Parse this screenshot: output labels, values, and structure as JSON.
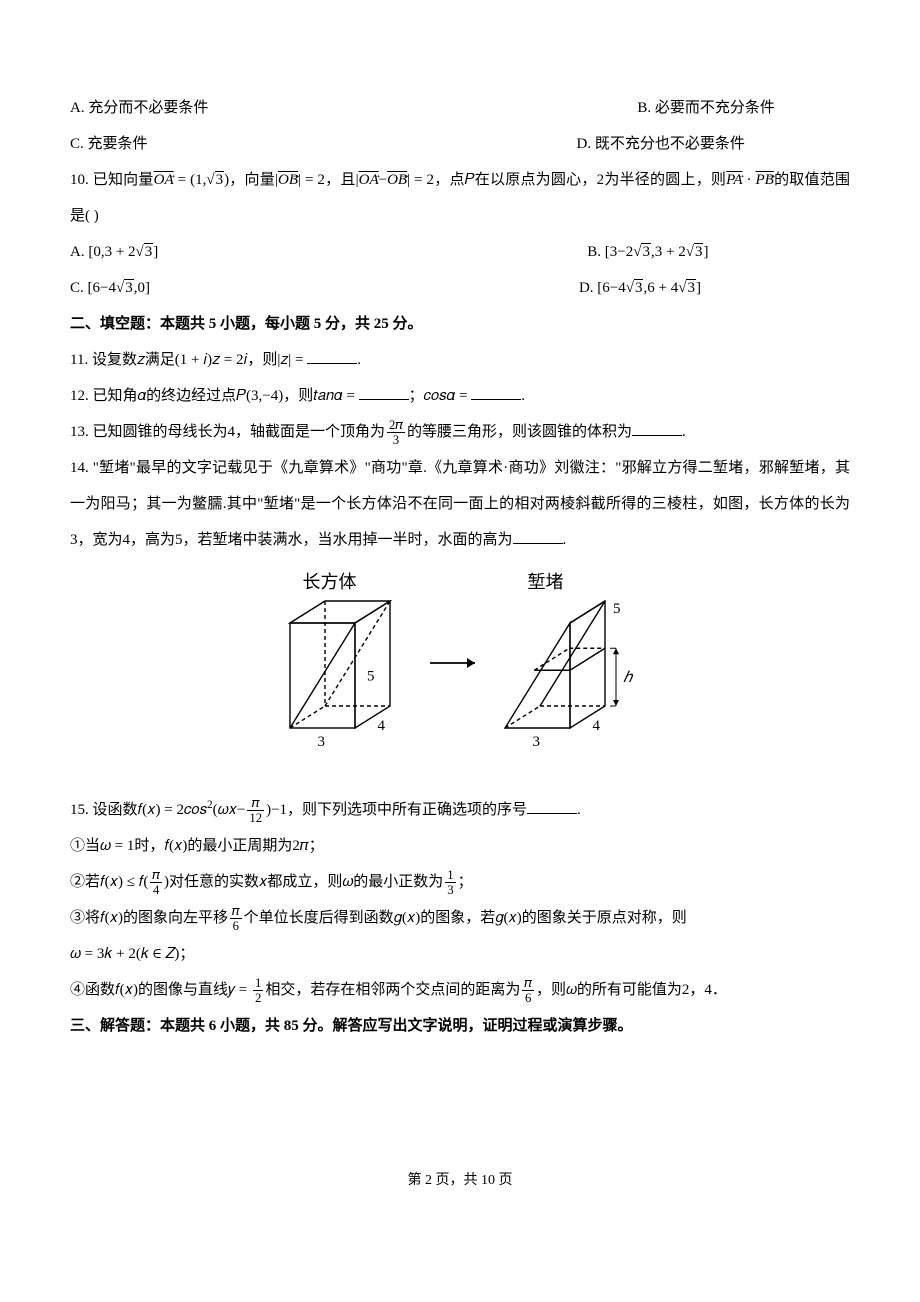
{
  "q9": {
    "optA": "A. 充分而不必要条件",
    "optB": "B. 必要而不充分条件",
    "optC": "C. 充要条件",
    "optD": "D. 既不充分也不必要条件"
  },
  "q10": {
    "stem1": "10. 已知向量",
    "vecOA": "OA",
    "eq1": " = (1,",
    "sqrt3a": "3",
    "stem2": ")，向量|",
    "vecOB": "OB",
    "stem3": "| = 2，且|",
    "vecOA2": "OA",
    "minus": "−",
    "vecOB2": "OB",
    "stem4": "| = 2，点𝑃在以原点为圆心，2为半径的圆上，则",
    "vecPA": "PA",
    "dot": " · ",
    "vecPB": "PB",
    "stem5": "的取值范围是(    )",
    "optA_pre": "A. [0,3 + 2",
    "optA_sqrt": "3",
    "optA_post": "]",
    "optB_pre": "B. [3−2",
    "optB_sqrt1": "3",
    "optB_mid": ",3 + 2",
    "optB_sqrt2": "3",
    "optB_post": "]",
    "optC_pre": "C. [6−4",
    "optC_sqrt": "3",
    "optC_post": ",0]",
    "optD_pre": "D. [6−4",
    "optD_sqrt1": "3",
    "optD_mid": ",6 + 4",
    "optD_sqrt2": "3",
    "optD_post": "]"
  },
  "sec2": "二、填空题：本题共 5 小题，每小题 5 分，共 25 分。",
  "q11": {
    "stem": "11. 设复数𝑧满足(1 + 𝑖)𝑧 = 2𝑖，则|𝑧| = ",
    "end": "."
  },
  "q12": {
    "stem": "12. 已知角𝛼的终边经过点𝑃(3,−4)，则𝑡𝑎𝑛𝛼 = ",
    "mid": "；𝑐𝑜𝑠𝛼 = ",
    "end": "."
  },
  "q13": {
    "stem1": "13. 已知圆锥的母线长为4，轴截面是一个顶角为",
    "frac_num": "2𝜋",
    "frac_den": "3",
    "stem2": "的等腰三角形，则该圆锥的体积为",
    "end": "."
  },
  "q14": {
    "stem": "14. \"堑堵\"最早的文字记载见于《九章算术》\"商功\"章.《九章算术·商功》刘徽注：\"邪解立方得二堑堵，邪解堑堵，其一为阳马；其一为鳖臑.其中\"堑堵\"是一个长方体沿不在同一面上的相对两棱斜截所得的三棱柱，如图，长方体的长为3，宽为4，高为5，若堑堵中装满水，当水用掉一半时，水面的高为",
    "end": "."
  },
  "q15": {
    "stem1": "15. 设函数𝑓(𝑥) = 2𝑐𝑜𝑠",
    "sup2": "2",
    "stem2": "(𝜔𝑥−",
    "f1n": "𝜋",
    "f1d": "12",
    "stem3": ")−1，则下列选项中所有正确选项的序号",
    "end": ".",
    "s1": "①当𝜔 = 1时，𝑓(𝑥)的最小正周期为2𝜋；",
    "s2a": "②若𝑓(𝑥) ≤ 𝑓(",
    "s2fn": "𝜋",
    "s2fd": "4",
    "s2b": ")对任意的实数𝑥都成立，则𝜔的最小正数为",
    "s2gn": "1",
    "s2gd": "3",
    "s2c": "；",
    "s3a": "③将𝑓(𝑥)的图象向左平移",
    "s3fn": "𝜋",
    "s3fd": "6",
    "s3b": "个单位长度后得到函数𝑔(𝑥)的图象，若𝑔(𝑥)的图象关于原点对称，则",
    "s3c": "𝜔 = 3𝑘 + 2(𝑘 ∈ 𝑍)；",
    "s4a": "④函数𝑓(𝑥)的图像与直线𝑦 = ",
    "s4fn": "1",
    "s4fd": "2",
    "s4b": "相交，若存在相邻两个交点间的距离为",
    "s4gn": "𝜋",
    "s4gd": "6",
    "s4c": "，则𝜔的所有可能值为2，4．"
  },
  "sec3": "三、解答题：本题共 6 小题，共 85 分。解答应写出文字说明，证明过程或演算步骤。",
  "footer": {
    "pre": "第 ",
    "num": "2",
    "mid": " 页，共 ",
    "total": "10",
    "post": " 页"
  },
  "diagram": {
    "label_left": "长方体",
    "label_right": "堑堵",
    "dim_3": "3",
    "dim_4": "4",
    "dim_5": "5",
    "dim_h": "ℎ",
    "stroke": "#000000",
    "stroke_width": 1.4,
    "dash": "4,3",
    "font_family": "SimSun, serif",
    "label_fontsize": 18,
    "dim_fontsize": 15
  }
}
